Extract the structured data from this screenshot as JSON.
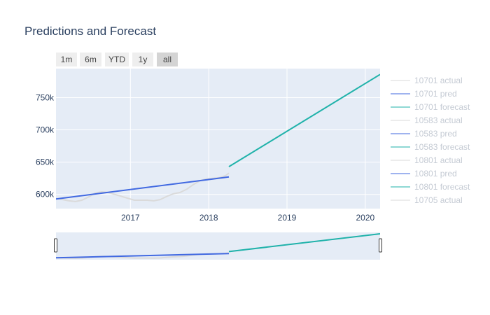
{
  "chart_data": {
    "type": "line",
    "title": "Predictions and Forecast",
    "xlabel": "",
    "ylabel": "",
    "xlim": [
      "2016-01-20",
      "2020-03-10"
    ],
    "ylim": [
      578000,
      795000
    ],
    "x_ticks": [
      "2017",
      "2018",
      "2019",
      "2020"
    ],
    "y_ticks": [
      "600k",
      "650k",
      "700k",
      "750k"
    ],
    "range_selector": [
      "1m",
      "6m",
      "YTD",
      "1y",
      "all"
    ],
    "range_selector_active": "all",
    "legend_position": "right",
    "colors": {
      "actual": "#dadada",
      "pred": "#4169e1",
      "forecast": "#20b2aa",
      "plot_bg": "#e5ecf6",
      "grid": "#ffffff"
    },
    "series": [
      {
        "name": "10701 actual",
        "role": "actual",
        "x": [
          "2016-01-20",
          "2016-02-20",
          "2016-03-20",
          "2016-04-20",
          "2016-05-20",
          "2016-06-20",
          "2016-07-20",
          "2016-08-20",
          "2016-09-20",
          "2016-10-20",
          "2016-11-20",
          "2016-12-20",
          "2017-01-20",
          "2017-02-20",
          "2017-03-20",
          "2017-04-20",
          "2017-05-20",
          "2017-06-20",
          "2017-07-20",
          "2017-08-20",
          "2017-09-20",
          "2017-10-20",
          "2017-11-20",
          "2017-12-20",
          "2018-01-20",
          "2018-02-20",
          "2018-03-20",
          "2018-04-05"
        ],
        "y": [
          594000,
          592000,
          590000,
          589000,
          591000,
          596000,
          602000,
          604000,
          603000,
          600000,
          597000,
          594000,
          591000,
          591000,
          591000,
          590000,
          592000,
          597000,
          601000,
          603000,
          608000,
          615000,
          621000,
          624000,
          625000,
          626000,
          629000,
          633000
        ]
      },
      {
        "name": "10701 pred",
        "role": "pred",
        "x": [
          "2016-01-20",
          "2018-04-05"
        ],
        "y": [
          593000,
          627000
        ]
      },
      {
        "name": "10701 forecast",
        "role": "forecast",
        "x": [
          "2018-04-05",
          "2020-03-10"
        ],
        "y": [
          643000,
          786000
        ]
      },
      {
        "name": "10583 actual",
        "role": "actual",
        "x": [],
        "y": []
      },
      {
        "name": "10583 pred",
        "role": "pred",
        "x": [],
        "y": []
      },
      {
        "name": "10583 forecast",
        "role": "forecast",
        "x": [],
        "y": []
      },
      {
        "name": "10801 actual",
        "role": "actual",
        "x": [],
        "y": []
      },
      {
        "name": "10801 pred",
        "role": "pred",
        "x": [],
        "y": []
      },
      {
        "name": "10801 forecast",
        "role": "forecast",
        "x": [],
        "y": []
      },
      {
        "name": "10705 actual",
        "role": "actual",
        "x": [],
        "y": []
      }
    ]
  }
}
